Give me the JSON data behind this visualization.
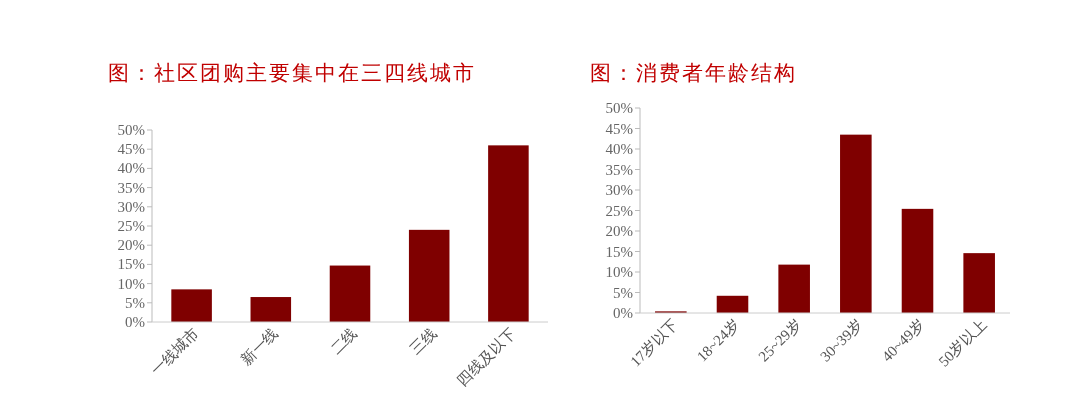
{
  "chart_data": [
    {
      "type": "bar",
      "title": "图：社区团购主要集中在三四线城市",
      "categories": [
        "一线城市",
        "新一线",
        "二线",
        "三线",
        "四线及以下"
      ],
      "values": [
        8.5,
        6.5,
        14.7,
        24,
        46
      ],
      "color": "#7f0000",
      "ylim": [
        0,
        50
      ],
      "yticks": [
        {
          "value": 0,
          "label": "0%"
        },
        {
          "value": 5,
          "label": "5%"
        },
        {
          "value": 10,
          "label": "10%"
        },
        {
          "value": 15,
          "label": "15%"
        },
        {
          "value": 20,
          "label": "20%"
        },
        {
          "value": 25,
          "label": "25%"
        },
        {
          "value": 30,
          "label": "30%"
        },
        {
          "value": 35,
          "label": "35%"
        },
        {
          "value": 40,
          "label": "40%"
        },
        {
          "value": 45,
          "label": "45%"
        },
        {
          "value": 50,
          "label": "50%"
        }
      ],
      "grid": false
    },
    {
      "type": "bar",
      "title": "图：消费者年龄结构",
      "categories": [
        "17岁以下",
        "18~24岁",
        "25~29岁",
        "30~39岁",
        "40~49岁",
        "50岁以上"
      ],
      "values": [
        0.4,
        4.2,
        11.8,
        43.5,
        25.4,
        14.6
      ],
      "color": "#7f0000",
      "ylim": [
        0,
        50
      ],
      "yticks": [
        {
          "value": 0,
          "label": "0%"
        },
        {
          "value": 5,
          "label": "5%"
        },
        {
          "value": 10,
          "label": "10%"
        },
        {
          "value": 15,
          "label": "15%"
        },
        {
          "value": 20,
          "label": "20%"
        },
        {
          "value": 25,
          "label": "25%"
        },
        {
          "value": 30,
          "label": "30%"
        },
        {
          "value": 35,
          "label": "35%"
        },
        {
          "value": 40,
          "label": "40%"
        },
        {
          "value": 45,
          "label": "45%"
        },
        {
          "value": 50,
          "label": "50%"
        }
      ],
      "grid": false
    }
  ]
}
